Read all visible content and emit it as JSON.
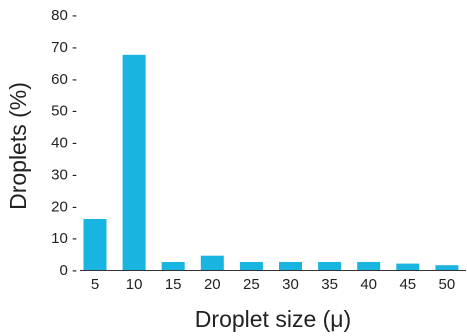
{
  "chart_data": {
    "type": "bar",
    "categories": [
      "5",
      "10",
      "15",
      "20",
      "25",
      "30",
      "35",
      "40",
      "45",
      "50"
    ],
    "values": [
      16,
      67.5,
      2.5,
      4.5,
      2.5,
      2.5,
      2.5,
      2.5,
      2,
      1.5
    ],
    "xlabel": "Droplet size (μ)",
    "ylabel": "Droplets (%)",
    "ylim": [
      0,
      80
    ],
    "yticks": [
      0,
      10,
      20,
      30,
      40,
      50,
      60,
      70,
      80
    ],
    "ytick_labels": [
      "0 -",
      "10 -",
      "20 -",
      "30 -",
      "40 -",
      "50 -",
      "60 -",
      "70 -",
      "80 -"
    ],
    "bar_color": "#1ab4e0",
    "grid": false
  }
}
